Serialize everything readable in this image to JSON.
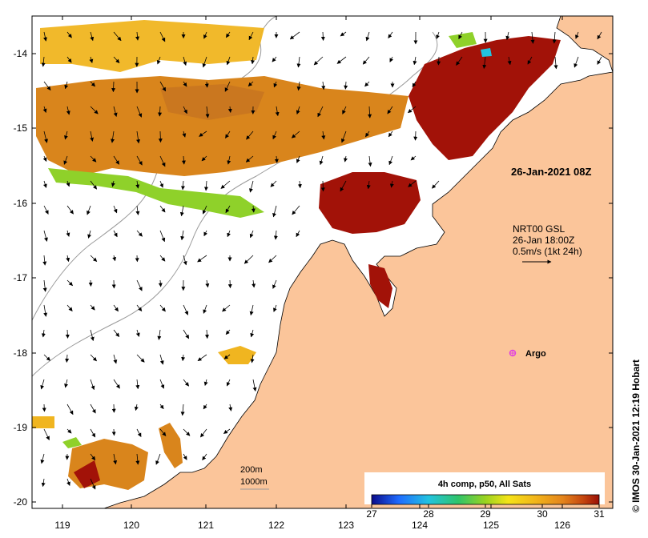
{
  "map": {
    "date_label": "26-Jan-2021 08Z",
    "current": {
      "source": "NRT00 GSL",
      "time": "26-Jan 18:00Z",
      "scale": "0.5m/s (1kt 24h)"
    },
    "argo_label": "Argo",
    "bathy": {
      "contour_200": "200m",
      "contour_1000": "1000m"
    },
    "credit": "© IMOS 30-Jan-2021 12:19 Hobart",
    "colorbar": {
      "title": "4h comp, p50, All Sats",
      "ticks": [
        "27",
        "28",
        "29",
        "30",
        "31"
      ],
      "colors": [
        "#0b0b8a",
        "#1f6cff",
        "#22c3e0",
        "#2fc46a",
        "#9ad320",
        "#f4e317",
        "#f2b51a",
        "#e4841b",
        "#c5460f",
        "#9a0f06"
      ]
    },
    "x_ticks": [
      "119",
      "120",
      "121",
      "122",
      "123",
      "124",
      "125",
      "126"
    ],
    "y_ticks": [
      "-14",
      "-15",
      "-16",
      "-17",
      "-18",
      "-19",
      "-20"
    ],
    "colors": {
      "land": "#fbc59a",
      "sea": "#ffffff",
      "hot": "#a21208",
      "warm": "#d9851c",
      "mild": "#f0b520",
      "cool": "#8fd12a",
      "argo": "#e040e0"
    }
  }
}
